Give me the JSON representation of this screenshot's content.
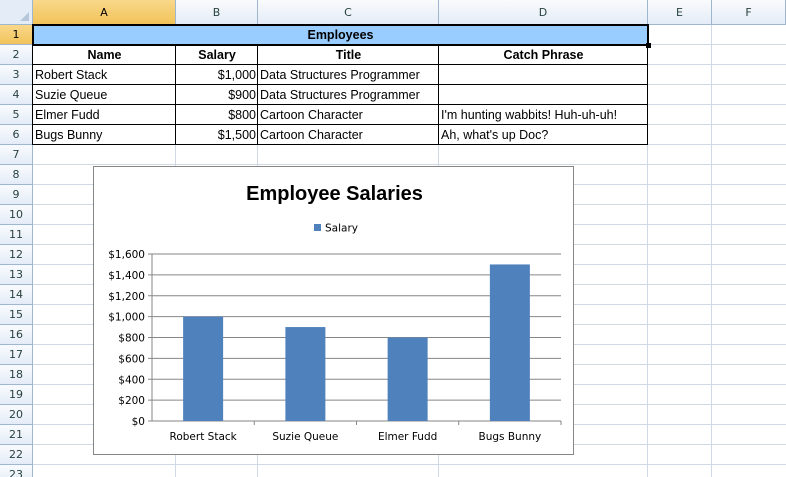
{
  "columns": [
    "A",
    "B",
    "C",
    "D",
    "E",
    "F"
  ],
  "rows": [
    "1",
    "2",
    "3",
    "4",
    "5",
    "6",
    "7",
    "8",
    "9",
    "10",
    "11",
    "12",
    "13",
    "14",
    "15",
    "16",
    "17",
    "18",
    "19",
    "20",
    "21",
    "22",
    "23"
  ],
  "table": {
    "title": "Employees",
    "title_fill": "#99ccff",
    "headers": [
      "Name",
      "Salary",
      "Title",
      "Catch Phrase"
    ],
    "rows": [
      [
        "Robert Stack",
        "$1,000",
        "Data Structures Programmer",
        ""
      ],
      [
        "Suzie Queue",
        "$900",
        "Data Structures Programmer",
        ""
      ],
      [
        "Elmer Fudd",
        "$800",
        "Cartoon Character",
        "I'm hunting wabbits!  Huh-uh-uh!"
      ],
      [
        "Bugs Bunny",
        "$1,500",
        "Cartoon Character",
        "Ah, what's up Doc?"
      ]
    ]
  },
  "selection": {
    "cell": "A1",
    "highlight_color": "#f2c35a"
  },
  "chart_data": {
    "type": "bar",
    "title": "Employee Salaries",
    "categories": [
      "Robert Stack",
      "Suzie Queue",
      "Elmer Fudd",
      "Bugs Bunny"
    ],
    "series": [
      {
        "name": "Salary",
        "values": [
          1000,
          900,
          800,
          1500
        ],
        "color": "#4f81bd"
      }
    ],
    "ylim": [
      0,
      1600
    ],
    "yticks": [
      "$0",
      "$200",
      "$400",
      "$600",
      "$800",
      "$1,000",
      "$1,200",
      "$1,400",
      "$1,600"
    ],
    "legend": "top",
    "grid": true
  }
}
